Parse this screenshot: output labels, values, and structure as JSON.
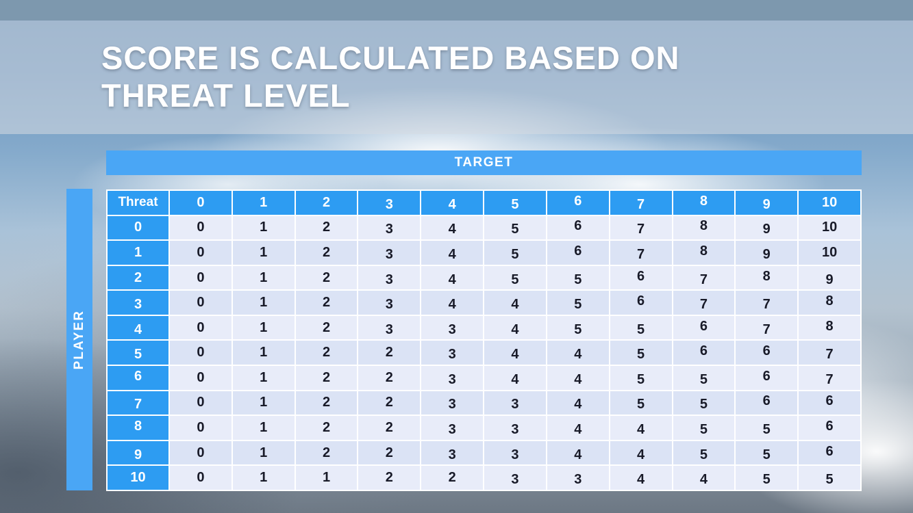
{
  "slide": {
    "title_line1": "SCORE IS CALCULATED BASED ON",
    "title_line2": "THREAT LEVEL",
    "target_label": "TARGET",
    "player_label": "PLAYER"
  },
  "chart_data": {
    "type": "table",
    "xlabel": "TARGET",
    "ylabel": "PLAYER",
    "corner_label": "Threat",
    "column_headers": [
      "0",
      "1",
      "2",
      "3",
      "4",
      "5",
      "6",
      "7",
      "8",
      "9",
      "10"
    ],
    "row_headers": [
      "0",
      "1",
      "2",
      "3",
      "4",
      "5",
      "6",
      "7",
      "8",
      "9",
      "10"
    ],
    "rows": [
      [
        "0",
        "1",
        "2",
        "3",
        "4",
        "5",
        "6",
        "7",
        "8",
        "9",
        "10"
      ],
      [
        "0",
        "1",
        "2",
        "3",
        "4",
        "5",
        "6",
        "7",
        "8",
        "9",
        "10"
      ],
      [
        "0",
        "1",
        "2",
        "3",
        "4",
        "5",
        "5",
        "6",
        "7",
        "8",
        "9"
      ],
      [
        "0",
        "1",
        "2",
        "3",
        "4",
        "4",
        "5",
        "6",
        "7",
        "7",
        "8"
      ],
      [
        "0",
        "1",
        "2",
        "3",
        "3",
        "4",
        "5",
        "5",
        "6",
        "7",
        "8"
      ],
      [
        "0",
        "1",
        "2",
        "2",
        "3",
        "4",
        "4",
        "5",
        "6",
        "6",
        "7"
      ],
      [
        "0",
        "1",
        "2",
        "2",
        "3",
        "4",
        "4",
        "5",
        "5",
        "6",
        "7"
      ],
      [
        "0",
        "1",
        "2",
        "2",
        "3",
        "3",
        "4",
        "5",
        "5",
        "6",
        "6"
      ],
      [
        "0",
        "1",
        "2",
        "2",
        "3",
        "3",
        "4",
        "4",
        "5",
        "5",
        "6"
      ],
      [
        "0",
        "1",
        "2",
        "2",
        "3",
        "3",
        "4",
        "4",
        "5",
        "5",
        "6"
      ],
      [
        "0",
        "1",
        "1",
        "2",
        "2",
        "3",
        "3",
        "4",
        "4",
        "5",
        "5"
      ]
    ]
  },
  "colors": {
    "header_blue": "#2d9cf2",
    "bar_blue": "#4aa6f5",
    "row_even": "#dbe3f5",
    "row_odd": "#e8ecf9",
    "cell_text": "#181a28",
    "top_strip": "#7d98ae"
  }
}
